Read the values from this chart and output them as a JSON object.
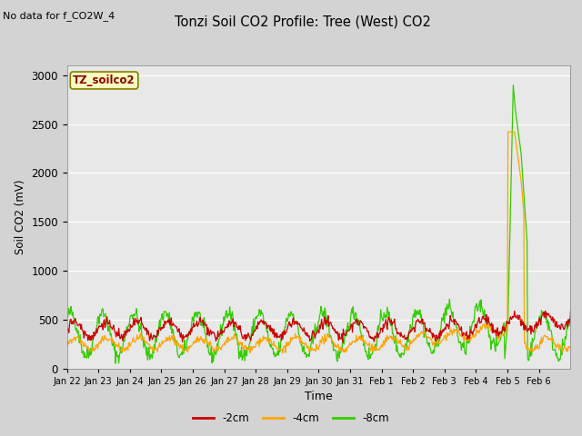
{
  "title": "Tonzi Soil CO2 Profile: Tree (West) CO2",
  "no_data_text": "No data for f_CO2W_4",
  "ylabel": "Soil CO2 (mV)",
  "xlabel": "Time",
  "legend_label": "TZ_soilco2",
  "series_labels": [
    "-2cm",
    "-4cm",
    "-8cm"
  ],
  "series_colors": [
    "#cc0000",
    "#ffa500",
    "#33cc00"
  ],
  "ylim": [
    0,
    3100
  ],
  "background_color": "#d3d3d3",
  "plot_bg_color": "#e8e8e8",
  "tick_labels": [
    "Jan 22",
    "Jan 23",
    "Jan 24",
    "Jan 25",
    "Jan 26",
    "Jan 27",
    "Jan 28",
    "Jan 29",
    "Jan 30",
    "Jan 31",
    "Feb 1",
    "Feb 2",
    "Feb 3",
    "Feb 4",
    "Feb 5",
    "Feb 6"
  ],
  "seed": 42
}
